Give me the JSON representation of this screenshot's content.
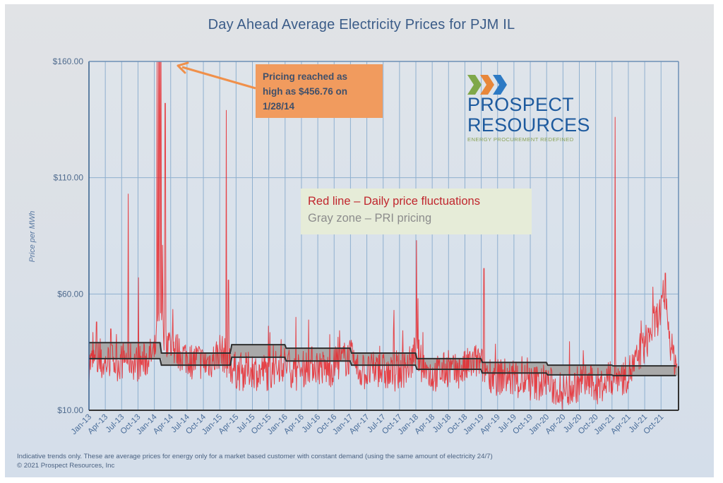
{
  "chart_data": {
    "type": "line",
    "title": "Day Ahead Average Electricity Prices for PJM IL",
    "xlabel": "",
    "ylabel": "Price per MWh",
    "ylim": [
      10,
      160
    ],
    "yticks": [
      "$160.00",
      "$110.00",
      "$60.00",
      "$10.00"
    ],
    "ytick_values": [
      160,
      110,
      60,
      10
    ],
    "grid": true,
    "x_unit": "months since Jan-13",
    "xlim": [
      0,
      108
    ],
    "xticks": [
      "Jan-13",
      "Apr-13",
      "Jul-13",
      "Oct-13",
      "Jan-14",
      "Apr-14",
      "Jul-14",
      "Oct-14",
      "Jan-15",
      "Apr-15",
      "Jul-15",
      "Oct-15",
      "Jan-16",
      "Apr-16",
      "Jul-16",
      "Oct-16",
      "Jan-17",
      "Apr-17",
      "Jul-17",
      "Oct-17",
      "Jan-18",
      "Apr-18",
      "Jul-18",
      "Oct-18",
      "Jan-19",
      "Apr-19",
      "Jul-19",
      "Oct-19",
      "Jan-20",
      "Apr-20",
      "Jul-20",
      "Oct-20",
      "Jan-21",
      "Apr-21",
      "Jul-21",
      "Oct-21"
    ],
    "series": [
      {
        "name": "Daily price fluctuations",
        "color": "#e8262a",
        "baseline": [
          [
            0,
            30
          ],
          [
            1,
            31
          ],
          [
            2,
            29
          ],
          [
            3,
            30
          ],
          [
            4,
            32
          ],
          [
            5,
            30
          ],
          [
            6,
            31
          ],
          [
            7,
            33
          ],
          [
            8,
            31
          ],
          [
            9,
            30
          ],
          [
            10,
            31
          ],
          [
            11,
            33
          ],
          [
            12,
            34
          ],
          [
            13,
            50
          ],
          [
            14,
            42
          ],
          [
            15,
            38
          ],
          [
            16,
            36
          ],
          [
            17,
            34
          ],
          [
            18,
            33
          ],
          [
            19,
            31
          ],
          [
            20,
            32
          ],
          [
            21,
            30
          ],
          [
            22,
            31
          ],
          [
            23,
            32
          ],
          [
            24,
            36
          ],
          [
            25,
            33
          ],
          [
            26,
            29
          ],
          [
            27,
            27
          ],
          [
            28,
            26
          ],
          [
            29,
            27
          ],
          [
            30,
            28
          ],
          [
            31,
            26
          ],
          [
            32,
            27
          ],
          [
            33,
            26
          ],
          [
            34,
            27
          ],
          [
            35,
            30
          ],
          [
            36,
            30
          ],
          [
            37,
            28
          ],
          [
            38,
            26
          ],
          [
            39,
            27
          ],
          [
            40,
            29
          ],
          [
            41,
            30
          ],
          [
            42,
            29
          ],
          [
            43,
            28
          ],
          [
            44,
            27
          ],
          [
            45,
            29
          ],
          [
            46,
            31
          ],
          [
            47,
            32
          ],
          [
            48,
            33
          ],
          [
            49,
            28
          ],
          [
            50,
            27
          ],
          [
            51,
            26
          ],
          [
            52,
            27
          ],
          [
            53,
            28
          ],
          [
            54,
            27
          ],
          [
            55,
            25
          ],
          [
            56,
            26
          ],
          [
            57,
            27
          ],
          [
            58,
            28
          ],
          [
            59,
            30
          ],
          [
            60,
            36
          ],
          [
            61,
            30
          ],
          [
            62,
            27
          ],
          [
            63,
            25
          ],
          [
            64,
            26
          ],
          [
            65,
            27
          ],
          [
            66,
            28
          ],
          [
            67,
            26
          ],
          [
            68,
            27
          ],
          [
            69,
            28
          ],
          [
            70,
            30
          ],
          [
            71,
            31
          ],
          [
            72,
            30
          ],
          [
            73,
            27
          ],
          [
            74,
            25
          ],
          [
            75,
            24
          ],
          [
            76,
            25
          ],
          [
            77,
            24
          ],
          [
            78,
            23
          ],
          [
            79,
            22
          ],
          [
            80,
            23
          ],
          [
            81,
            21
          ],
          [
            82,
            22
          ],
          [
            83,
            22
          ],
          [
            84,
            23
          ],
          [
            85,
            20
          ],
          [
            86,
            19
          ],
          [
            87,
            18
          ],
          [
            88,
            19
          ],
          [
            89,
            20
          ],
          [
            90,
            22
          ],
          [
            91,
            23
          ],
          [
            92,
            22
          ],
          [
            93,
            20
          ],
          [
            94,
            21
          ],
          [
            95,
            22
          ],
          [
            96,
            24
          ],
          [
            97,
            25
          ],
          [
            98,
            24
          ],
          [
            99,
            26
          ],
          [
            100,
            29
          ],
          [
            101,
            33
          ],
          [
            102,
            38
          ],
          [
            103,
            43
          ],
          [
            104,
            48
          ],
          [
            105,
            53
          ],
          [
            106,
            52
          ],
          [
            107,
            35
          ],
          [
            108,
            30
          ]
        ],
        "spikes": [
          {
            "x": 1.4,
            "y": 48
          },
          {
            "x": 4.0,
            "y": 45
          },
          {
            "x": 7.2,
            "y": 103
          },
          {
            "x": 9.1,
            "y": 67
          },
          {
            "x": 12.5,
            "y": 160
          },
          {
            "x": 12.8,
            "y": 160
          },
          {
            "x": 13.0,
            "y": 160
          },
          {
            "x": 13.2,
            "y": 160
          },
          {
            "x": 13.5,
            "y": 81
          },
          {
            "x": 14.0,
            "y": 142
          },
          {
            "x": 25.2,
            "y": 139
          },
          {
            "x": 25.6,
            "y": 66
          },
          {
            "x": 38.0,
            "y": 50
          },
          {
            "x": 56.0,
            "y": 53
          },
          {
            "x": 60.1,
            "y": 83
          },
          {
            "x": 60.4,
            "y": 58
          },
          {
            "x": 72.5,
            "y": 71
          },
          {
            "x": 96.6,
            "y": 136
          },
          {
            "x": 103.5,
            "y": 63
          },
          {
            "x": 105.8,
            "y": 69
          }
        ]
      },
      {
        "name": "PRI pricing",
        "type": "band",
        "color": "#a9a9a9",
        "bands": [
          {
            "from": 0,
            "to": 13.3,
            "high": 39.1,
            "low": 32.2
          },
          {
            "from": 13.3,
            "to": 26.2,
            "high": 34.6,
            "low": 29.4
          },
          {
            "from": 26.2,
            "to": 36.2,
            "high": 38.2,
            "low": 32.8
          },
          {
            "from": 36.2,
            "to": 48.2,
            "high": 36.7,
            "low": 31.2
          },
          {
            "from": 48.2,
            "to": 60.2,
            "high": 34.6,
            "low": 29.4
          },
          {
            "from": 60.2,
            "to": 72.2,
            "high": 32.2,
            "low": 27.6
          },
          {
            "from": 72.2,
            "to": 84.2,
            "high": 30.6,
            "low": 26.0
          },
          {
            "from": 84.2,
            "to": 96.2,
            "high": 29.4,
            "low": 25.2
          },
          {
            "from": 96.2,
            "to": 108,
            "high": 29.1,
            "low": 24.9
          }
        ]
      }
    ],
    "annotations": [
      {
        "text": "Pricing reached as high as $456.76 on 1/28/14",
        "points_to": {
          "x": 13.0,
          "y": 160
        }
      }
    ],
    "legend": {
      "placement": "center",
      "entries": [
        {
          "text": "Red line – Daily price fluctuations",
          "color": "#c0262d"
        },
        {
          "text": "Gray zone – PRI pricing",
          "color": "#8c8c8c"
        }
      ]
    }
  },
  "callout": {
    "line1": "Pricing reached as",
    "line2": "high as $456.76 on",
    "line3": "1/28/14"
  },
  "logo": {
    "word1": "PROSPECT",
    "word2": "RESOURCES",
    "tagline": "ENERGY PROCUREMENT REDEFINED",
    "chevron_colors": [
      "#7fa84a",
      "#e8873a",
      "#2d7ac4"
    ]
  },
  "footer": {
    "line1": "Indicative trends only. These are average prices for energy only for a market based customer with constant demand (using the same amount of electricity 24/7)",
    "line2": "© 2021 Prospect Resources, Inc"
  }
}
